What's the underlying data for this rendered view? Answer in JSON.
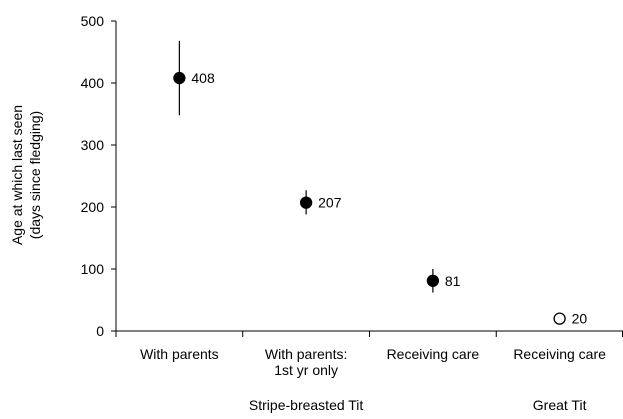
{
  "chart_data": {
    "type": "scatter",
    "ylabel_line1": "Age at which last seen",
    "ylabel_line2": "(days  since fledging)",
    "ylim": [
      0,
      500
    ],
    "yticks": [
      0,
      100,
      200,
      300,
      400,
      500
    ],
    "grid": false,
    "categories": [
      {
        "lines": [
          "With parents"
        ],
        "value": 408,
        "err_low": 348,
        "err_high": 468,
        "label": "408",
        "marker": "filled",
        "group": "Stripe-breasted Tit"
      },
      {
        "lines": [
          "With parents:",
          "1st yr only"
        ],
        "value": 207,
        "err_low": 188,
        "err_high": 227,
        "label": "207",
        "marker": "filled",
        "group": "Stripe-breasted Tit"
      },
      {
        "lines": [
          "Receiving care"
        ],
        "value": 81,
        "err_low": 62,
        "err_high": 100,
        "label": "81",
        "marker": "filled",
        "group": "Stripe-breasted Tit"
      },
      {
        "lines": [
          "Receiving care"
        ],
        "value": 20,
        "err_low": 20,
        "err_high": 20,
        "label": "20",
        "marker": "open",
        "group": "Great Tit"
      }
    ],
    "groups": [
      {
        "name": "Stripe-breasted Tit",
        "span": [
          0,
          2
        ]
      },
      {
        "name": "Great Tit",
        "span": [
          3,
          3
        ]
      }
    ]
  }
}
